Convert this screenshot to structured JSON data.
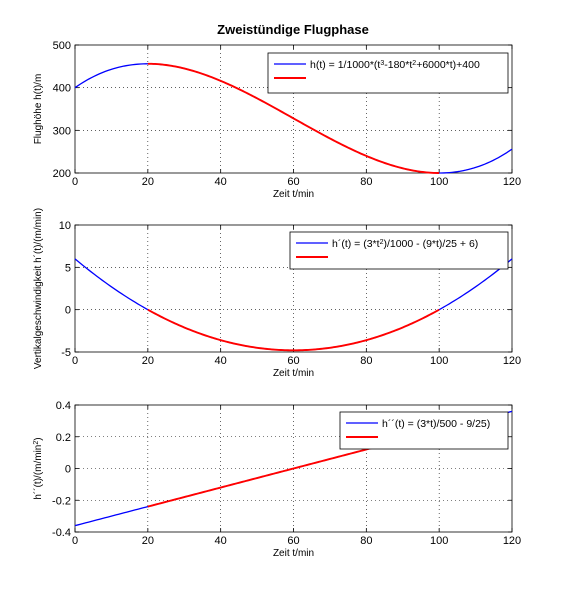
{
  "figure": {
    "title": "Zweistündige Flugphase"
  },
  "colors": {
    "blue": "#0000ff",
    "red": "#ff0000"
  },
  "chart_data": [
    {
      "type": "line",
      "title": "Zweistündige Flugphase",
      "xlabel": "Zeit  t/min",
      "ylabel": "Flughöhe  h(t)/m",
      "xlim": [
        0,
        120
      ],
      "ylim": [
        200,
        500
      ],
      "xticks": [
        0,
        20,
        40,
        60,
        80,
        100,
        120
      ],
      "yticks": [
        200,
        300,
        400,
        500
      ],
      "grid": true,
      "legend_position": "top-right",
      "function": "h",
      "series": [
        {
          "name": "h(t) = 1/1000*(t^3-180*t^2+6000*t)+400",
          "legend_parts": [
            {
              "text": "h(t) = 1/1000*(t",
              "sup": false
            },
            {
              "text": "3",
              "sup": true
            },
            {
              "text": "-180*t",
              "sup": false
            },
            {
              "text": "2",
              "sup": true
            },
            {
              "text": "+6000*t)+400",
              "sup": false
            }
          ],
          "color": "#0000ff",
          "x_range": [
            0,
            120
          ]
        },
        {
          "name": "",
          "legend_parts": [],
          "color": "#ff0000",
          "x_range": [
            20,
            100
          ]
        }
      ]
    },
    {
      "type": "line",
      "xlabel": "Zeit  t/min",
      "ylabel": "Vertikalgeschwindigkeit  h´(t)/(m/min)",
      "xlim": [
        0,
        120
      ],
      "ylim": [
        -5,
        10
      ],
      "xticks": [
        0,
        20,
        40,
        60,
        80,
        100,
        120
      ],
      "yticks": [
        -5,
        0,
        5,
        10
      ],
      "grid": true,
      "legend_position": "top-right",
      "function": "h1",
      "series": [
        {
          "name": "h´(t) = (3*t^2)/1000 - (9*t)/25 + 6)",
          "legend_parts": [
            {
              "text": "h´(t) = (3*t",
              "sup": false
            },
            {
              "text": "2",
              "sup": true
            },
            {
              "text": ")/1000 - (9*t)/25 + 6)",
              "sup": false
            }
          ],
          "color": "#0000ff",
          "x_range": [
            0,
            120
          ]
        },
        {
          "name": "",
          "legend_parts": [],
          "color": "#ff0000",
          "x_range": [
            20,
            100
          ]
        }
      ]
    },
    {
      "type": "line",
      "xlabel": "Zeit  t/min",
      "ylabel": "h´´(t)/(m/min^2)",
      "ylabel_parts": [
        {
          "text": "h´´(t)/(m/min",
          "sup": false
        },
        {
          "text": "2",
          "sup": true
        },
        {
          "text": ")",
          "sup": false
        }
      ],
      "xlim": [
        0,
        120
      ],
      "ylim": [
        -0.4,
        0.4
      ],
      "xticks": [
        0,
        20,
        40,
        60,
        80,
        100,
        120
      ],
      "yticks": [
        -0.4,
        -0.2,
        0,
        0.2,
        0.4
      ],
      "grid": true,
      "legend_position": "top-right",
      "function": "h2",
      "series": [
        {
          "name": "h´´(t) = (3*t)/500 - 9/25)",
          "legend_parts": [
            {
              "text": "h´´(t) = (3*t)/500 - 9/25)",
              "sup": false
            }
          ],
          "color": "#0000ff",
          "x_range": [
            0,
            120
          ]
        },
        {
          "name": "",
          "legend_parts": [],
          "color": "#ff0000",
          "x_range": [
            20,
            100
          ]
        }
      ]
    }
  ]
}
